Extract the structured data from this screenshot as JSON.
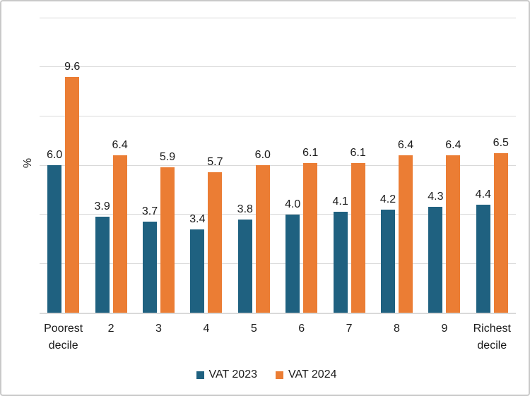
{
  "chart_data": {
    "type": "bar",
    "title": "",
    "xlabel": "",
    "ylabel": "%",
    "categories": [
      "Poorest decile",
      "2",
      "3",
      "4",
      "5",
      "6",
      "7",
      "8",
      "9",
      "Richest decile"
    ],
    "series": [
      {
        "name": "VAT 2023",
        "color": "#1F6180",
        "values": [
          6.0,
          3.9,
          3.7,
          3.4,
          3.8,
          4.0,
          4.1,
          4.2,
          4.3,
          4.4
        ]
      },
      {
        "name": "VAT 2024",
        "color": "#EB7D34",
        "values": [
          9.6,
          6.4,
          5.9,
          5.7,
          6.0,
          6.1,
          6.1,
          6.4,
          6.4,
          6.5
        ]
      }
    ],
    "ylim": [
      0,
      12
    ],
    "gridline_step": 2,
    "grid": true,
    "y_tick_labels_visible": false,
    "data_labels": true,
    "data_label_decimals": 1,
    "legend_position": "bottom"
  },
  "colors": {
    "grid": "#D9D9D9",
    "axis": "#D9D9D9",
    "text": "#1A1A1A",
    "background": "#FFFFFF",
    "border": "#C9C9C9"
  }
}
